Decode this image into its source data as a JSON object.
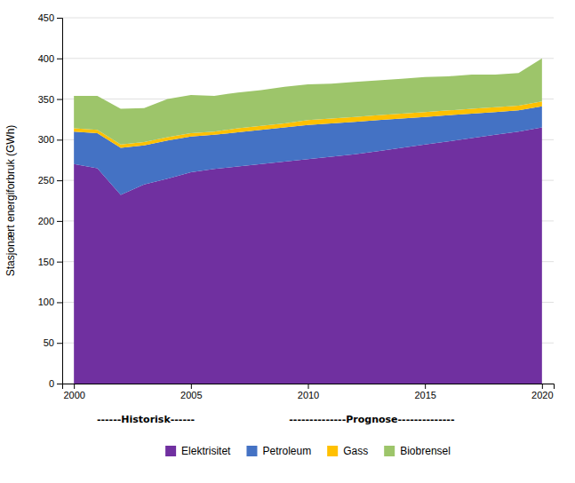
{
  "chart_data": {
    "type": "area",
    "stacked": true,
    "x": [
      2000,
      2001,
      2002,
      2003,
      2004,
      2005,
      2006,
      2007,
      2008,
      2009,
      2010,
      2011,
      2012,
      2013,
      2014,
      2015,
      2016,
      2017,
      2018,
      2019,
      2020
    ],
    "series": [
      {
        "name": "Elektrisitet",
        "color": "#7030A0",
        "values": [
          270,
          265,
          232,
          245,
          252,
          260,
          264,
          267,
          270,
          273,
          276,
          279,
          282,
          286,
          290,
          294,
          298,
          302,
          306,
          310,
          315
        ]
      },
      {
        "name": "Petroleum",
        "color": "#4472C4",
        "values": [
          40,
          43,
          58,
          48,
          47,
          44,
          42,
          42,
          42,
          42,
          42,
          41,
          40,
          38,
          36,
          34,
          32,
          30,
          28,
          26,
          26
        ]
      },
      {
        "name": "Gass",
        "color": "#FFC000",
        "values": [
          4,
          4,
          4,
          4,
          4,
          4,
          4,
          5,
          5,
          5,
          6,
          6,
          6,
          6,
          6,
          6,
          6,
          6,
          6,
          6,
          6
        ]
      },
      {
        "name": "Biobrensel",
        "color": "#9DC56A",
        "values": [
          40,
          42,
          44,
          42,
          47,
          47,
          44,
          44,
          44,
          45,
          44,
          43,
          43,
          43,
          43,
          43,
          42,
          42,
          40,
          40,
          53
        ]
      }
    ],
    "ylabel": "Stasjonært energiforbruk (GWh)",
    "ylim": [
      0,
      450
    ],
    "yticks": [
      0,
      50,
      100,
      150,
      200,
      250,
      300,
      350,
      400,
      450
    ],
    "xlim": [
      1999.5,
      2020.5
    ],
    "xticks": [
      2000,
      2005,
      2010,
      2015,
      2020
    ],
    "grid": true,
    "legend": "bottom",
    "annotations": [
      "------Historisk------",
      "--------------Prognose--------------"
    ]
  }
}
